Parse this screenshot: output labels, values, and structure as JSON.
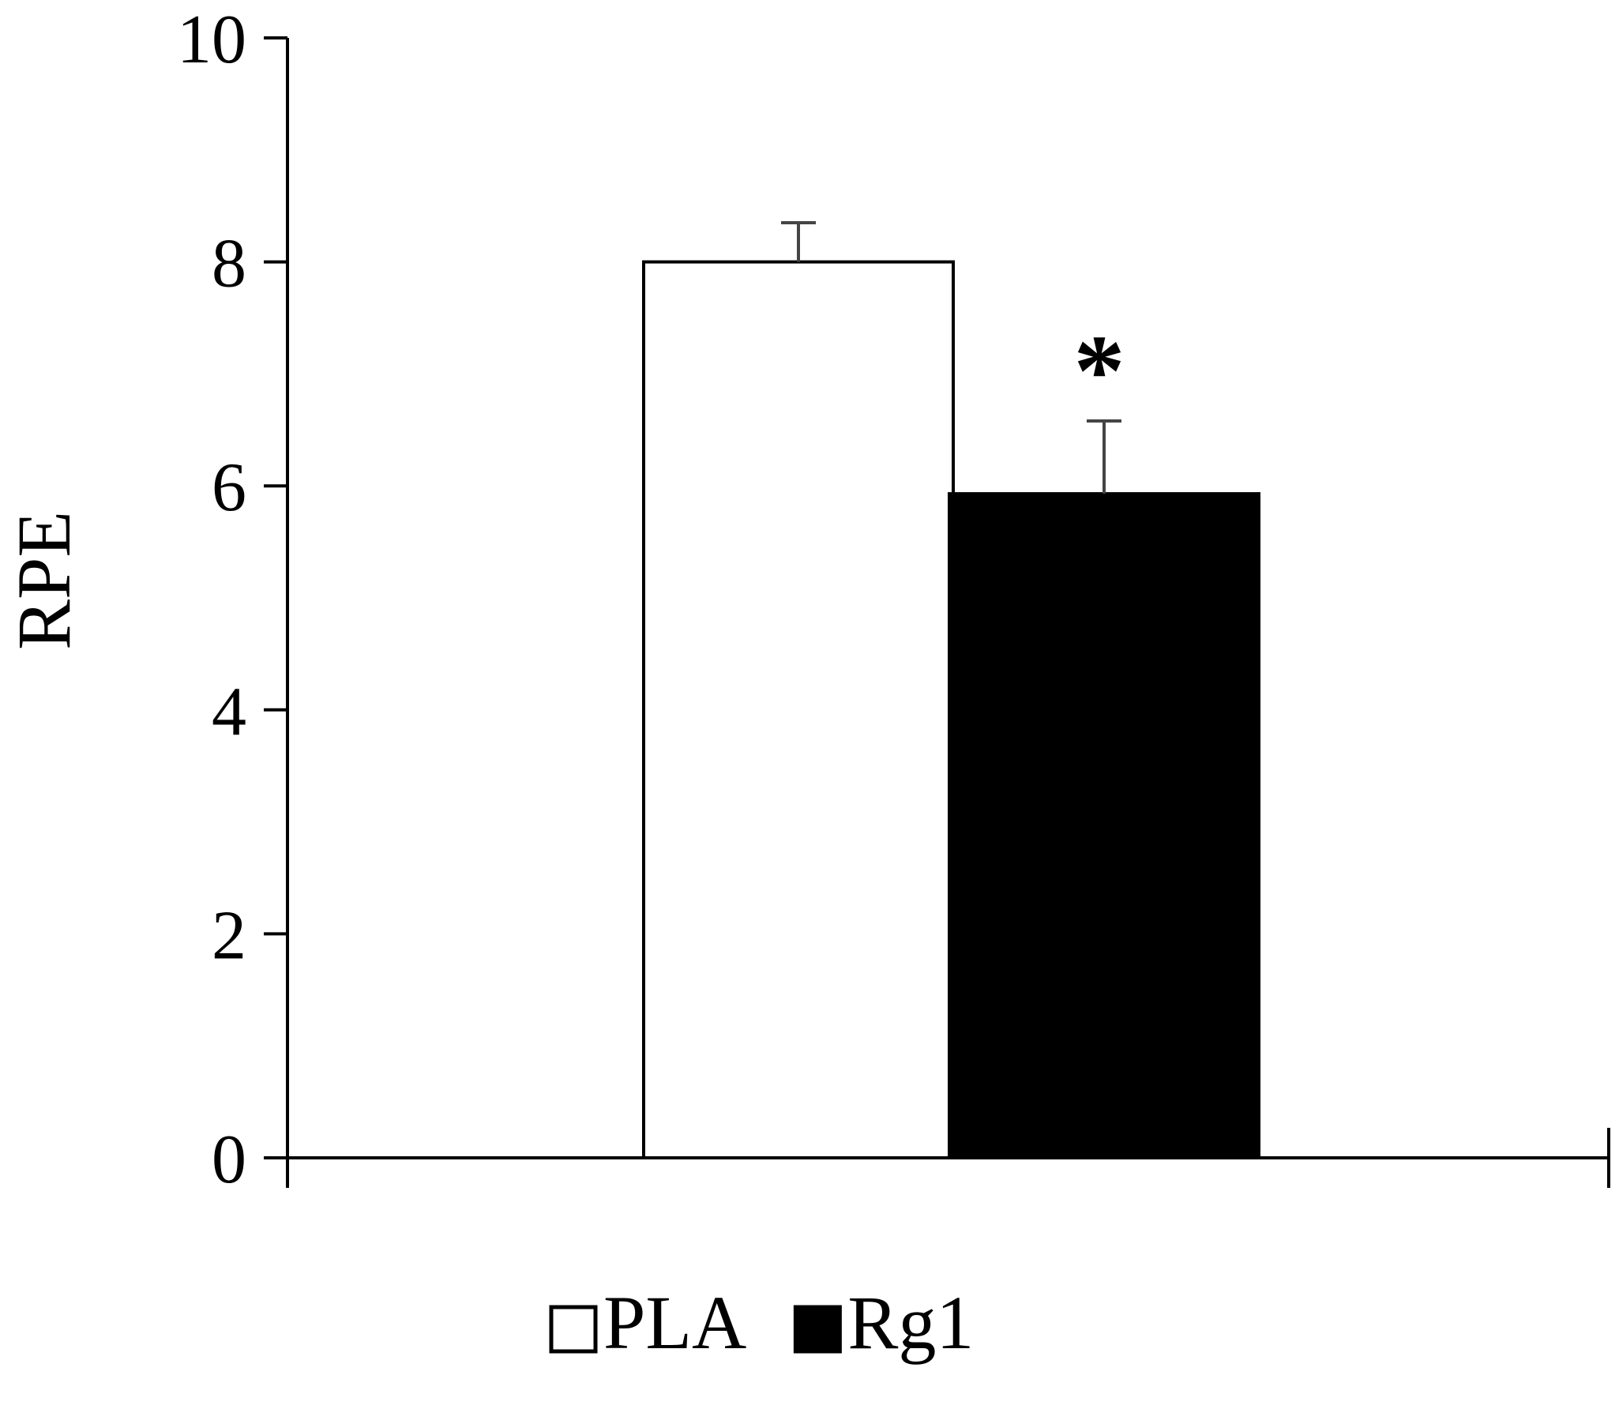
{
  "chart_data": {
    "type": "bar",
    "title": "",
    "xlabel": "",
    "ylabel": "RPE",
    "ylim": [
      0,
      10
    ],
    "yticks": [
      "0",
      "2",
      "4",
      "6",
      "8",
      "10"
    ],
    "grid": false,
    "legend_position": "bottom",
    "categories": [
      ""
    ],
    "series": [
      {
        "name": "PLA",
        "values": [
          8.0
        ],
        "error": [
          0.35
        ],
        "fill": "#ffffff",
        "stroke": "#000000"
      },
      {
        "name": "Rg1",
        "values": [
          5.93
        ],
        "error": [
          0.65
        ],
        "fill": "#000000",
        "stroke": "#000000"
      }
    ],
    "annotations": [
      {
        "text": "*",
        "series": "Rg1"
      }
    ]
  }
}
